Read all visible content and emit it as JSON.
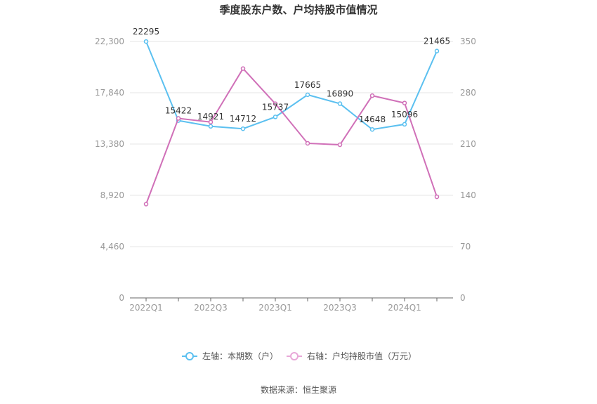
{
  "chart_data": {
    "type": "line",
    "title": "季度股东户数、户均持股市值情况",
    "categories": [
      "2022Q1",
      "2022Q2",
      "2022Q3",
      "2022Q4",
      "2023Q1",
      "2023Q2",
      "2023Q3",
      "2023Q4",
      "2024Q1",
      "2024Q2"
    ],
    "x_tick_labels": [
      "2022Q1",
      "2022Q3",
      "2023Q1",
      "2023Q3",
      "2024Q1"
    ],
    "left_axis": {
      "ticks": [
        "0",
        "4,460",
        "8,920",
        "13,380",
        "17,840",
        "22,300"
      ],
      "ylim": [
        0,
        22300
      ]
    },
    "right_axis": {
      "ticks": [
        "0",
        "70",
        "140",
        "210",
        "280",
        "350"
      ],
      "ylim": [
        0,
        350
      ]
    },
    "series": [
      {
        "name": "左轴：本期数（户）",
        "axis": "left",
        "color": "#5bc0f0",
        "values": [
          22295,
          15422,
          14921,
          14712,
          15737,
          17665,
          16890,
          14648,
          15096,
          21465
        ],
        "labels": [
          "22295",
          "15422",
          "14921",
          "14712",
          "15737",
          "17665",
          "16890",
          "14648",
          "15096",
          "21465"
        ]
      },
      {
        "name": "右轴：户均持股市值（万元）",
        "axis": "right",
        "color": "#d070b8",
        "values": [
          128,
          245,
          240,
          313,
          265,
          211,
          209,
          276,
          266,
          138
        ]
      }
    ],
    "grid": true,
    "legend_position": "bottom"
  },
  "source": "数据来源：恒生聚源"
}
